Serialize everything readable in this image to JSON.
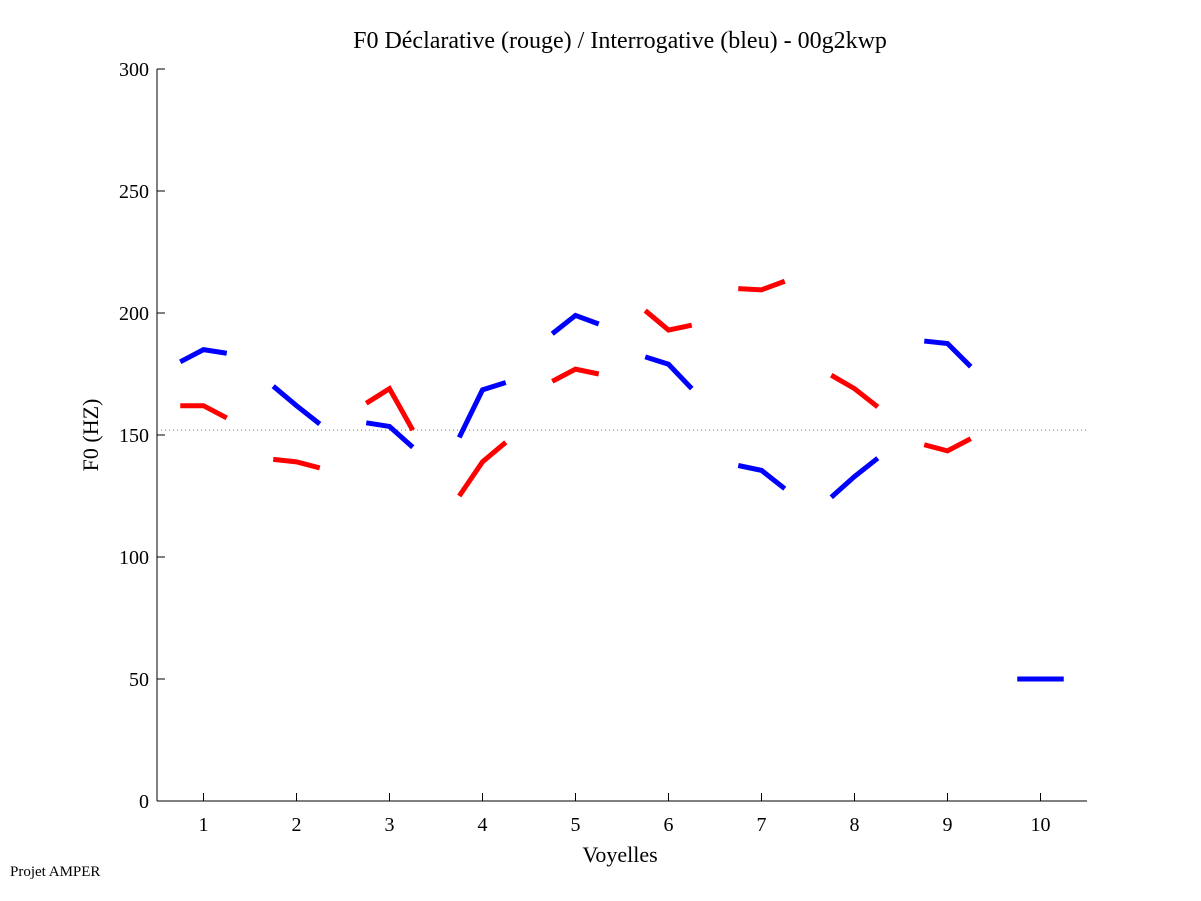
{
  "chart_data": {
    "type": "line",
    "title": "F0 Déclarative (rouge) / Interrogative (bleu) - 00g2kwp",
    "xlabel": "Voyelles",
    "ylabel": "F0 (HZ)",
    "xlim": [
      0.5,
      10.5
    ],
    "ylim": [
      0,
      300
    ],
    "xticks": [
      "1",
      "2",
      "3",
      "4",
      "5",
      "6",
      "7",
      "8",
      "9",
      "10"
    ],
    "yticks": [
      "0",
      "50",
      "100",
      "150",
      "200",
      "250",
      "300"
    ],
    "reference_line": {
      "y": 152,
      "color": "#00cc00",
      "style": "dotted"
    },
    "series": [
      {
        "name": "Déclarative",
        "color": "#ff0000",
        "segments": [
          {
            "vowel": 1,
            "values": [
              162,
              162,
              157
            ]
          },
          {
            "vowel": 2,
            "values": [
              140,
              139,
              136.5
            ]
          },
          {
            "vowel": 3,
            "values": [
              163,
              169,
              152
            ]
          },
          {
            "vowel": 4,
            "values": [
              125,
              139,
              147
            ]
          },
          {
            "vowel": 5,
            "values": [
              172,
              177,
              175
            ]
          },
          {
            "vowel": 6,
            "values": [
              201,
              193,
              195
            ]
          },
          {
            "vowel": 7,
            "values": [
              210,
              209.5,
              213
            ]
          },
          {
            "vowel": 8,
            "values": [
              174.5,
              169,
              161.5
            ]
          },
          {
            "vowel": 9,
            "values": [
              146,
              143.5,
              148.5
            ]
          }
        ]
      },
      {
        "name": "Interrogative",
        "color": "#0000ff",
        "segments": [
          {
            "vowel": 1,
            "values": [
              180,
              185,
              183.5
            ]
          },
          {
            "vowel": 2,
            "values": [
              170,
              162,
              154.5
            ]
          },
          {
            "vowel": 3,
            "values": [
              155,
              153.5,
              145
            ]
          },
          {
            "vowel": 4,
            "values": [
              149,
              168.5,
              171.5
            ]
          },
          {
            "vowel": 5,
            "values": [
              191.5,
              199,
              195.5
            ]
          },
          {
            "vowel": 6,
            "values": [
              182,
              179,
              169
            ]
          },
          {
            "vowel": 7,
            "values": [
              137.5,
              135.5,
              128
            ]
          },
          {
            "vowel": 8,
            "values": [
              124.5,
              133,
              140.5
            ]
          },
          {
            "vowel": 9,
            "values": [
              188.5,
              187.5,
              178
            ]
          },
          {
            "vowel": 10,
            "values": [
              50,
              50,
              50
            ]
          }
        ]
      }
    ]
  },
  "footer": "Projet AMPER"
}
